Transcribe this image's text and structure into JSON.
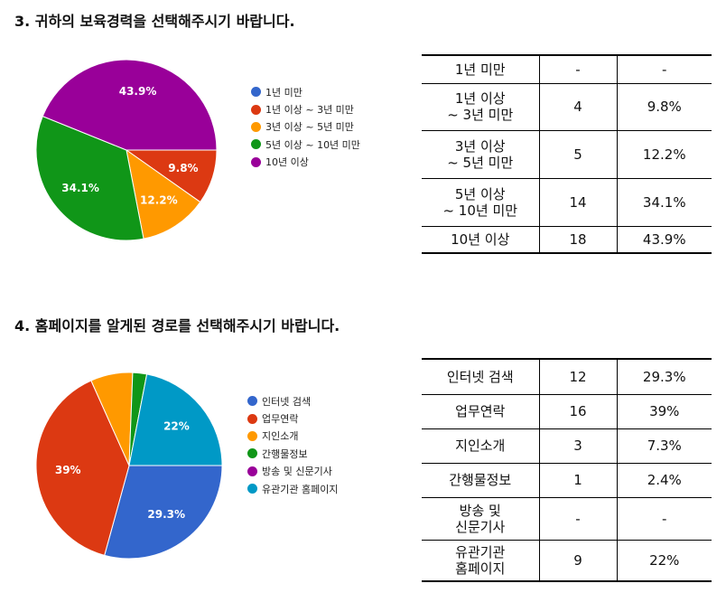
{
  "sections": [
    {
      "title": "3. 귀하의 보육경력을 선택해주시기 바랍니다.",
      "legend": [
        "1년 미만",
        "1년 이상 ~ 3년 미만",
        "3년 이상 ~ 5년 미만",
        "5년 이상 ~ 10년 미만",
        "10년 이상"
      ],
      "colors": [
        "#3366cc",
        "#dc3912",
        "#ff9900",
        "#109618",
        "#990099"
      ],
      "slice_labels": [
        "",
        "9.8%",
        "12.2%",
        "34.1%",
        "43.9%"
      ],
      "rows": [
        {
          "label": [
            "1년 미만"
          ],
          "count": "-",
          "percent": "-"
        },
        {
          "label": [
            "1년 이상",
            "~ 3년 미만"
          ],
          "count": "4",
          "percent": "9.8%"
        },
        {
          "label": [
            "3년 이상",
            "~ 5년 미만"
          ],
          "count": "5",
          "percent": "12.2%"
        },
        {
          "label": [
            "5년 이상",
            "~ 10년 미만"
          ],
          "count": "14",
          "percent": "34.1%"
        },
        {
          "label": [
            "10년 이상"
          ],
          "count": "18",
          "percent": "43.9%"
        }
      ]
    },
    {
      "title": "4. 홈페이지를 알게된 경로를 선택해주시기 바랍니다.",
      "legend": [
        "인터넷 검색",
        "업무연락",
        "지인소개",
        "간행물정보",
        "방송 및 신문기사",
        "유관기관 홈페이지"
      ],
      "colors": [
        "#3366cc",
        "#dc3912",
        "#ff9900",
        "#109618",
        "#990099",
        "#0099c6"
      ],
      "slice_labels": [
        "29.3%",
        "39%",
        "",
        "",
        "",
        "22%"
      ],
      "rows": [
        {
          "label": [
            "인터넷 검색"
          ],
          "count": "12",
          "percent": "29.3%"
        },
        {
          "label": [
            "업무연락"
          ],
          "count": "16",
          "percent": "39%"
        },
        {
          "label": [
            "지인소개"
          ],
          "count": "3",
          "percent": "7.3%"
        },
        {
          "label": [
            "간행물정보"
          ],
          "count": "1",
          "percent": "2.4%"
        },
        {
          "label": [
            "방송 및",
            "신문기사"
          ],
          "count": "-",
          "percent": "-"
        },
        {
          "label": [
            "유관기관",
            "홈페이지"
          ],
          "count": "9",
          "percent": "22%"
        }
      ]
    }
  ],
  "chart_data": [
    {
      "type": "pie",
      "title": "3. 귀하의 보육경력을 선택해주시기 바랍니다.",
      "categories": [
        "1년 미만",
        "1년 이상 ~ 3년 미만",
        "3년 이상 ~ 5년 미만",
        "5년 이상 ~ 10년 미만",
        "10년 이상"
      ],
      "values": [
        0,
        4,
        5,
        14,
        18
      ],
      "percent": [
        0,
        9.8,
        12.2,
        34.1,
        43.9
      ],
      "legend": "right"
    },
    {
      "type": "pie",
      "title": "4. 홈페이지를 알게된 경로를 선택해주시기 바랍니다.",
      "categories": [
        "인터넷 검색",
        "업무연락",
        "지인소개",
        "간행물정보",
        "방송 및 신문기사",
        "유관기관 홈페이지"
      ],
      "values": [
        12,
        16,
        3,
        1,
        0,
        9
      ],
      "percent": [
        29.3,
        39,
        7.3,
        2.4,
        0,
        22
      ],
      "legend": "right"
    }
  ]
}
